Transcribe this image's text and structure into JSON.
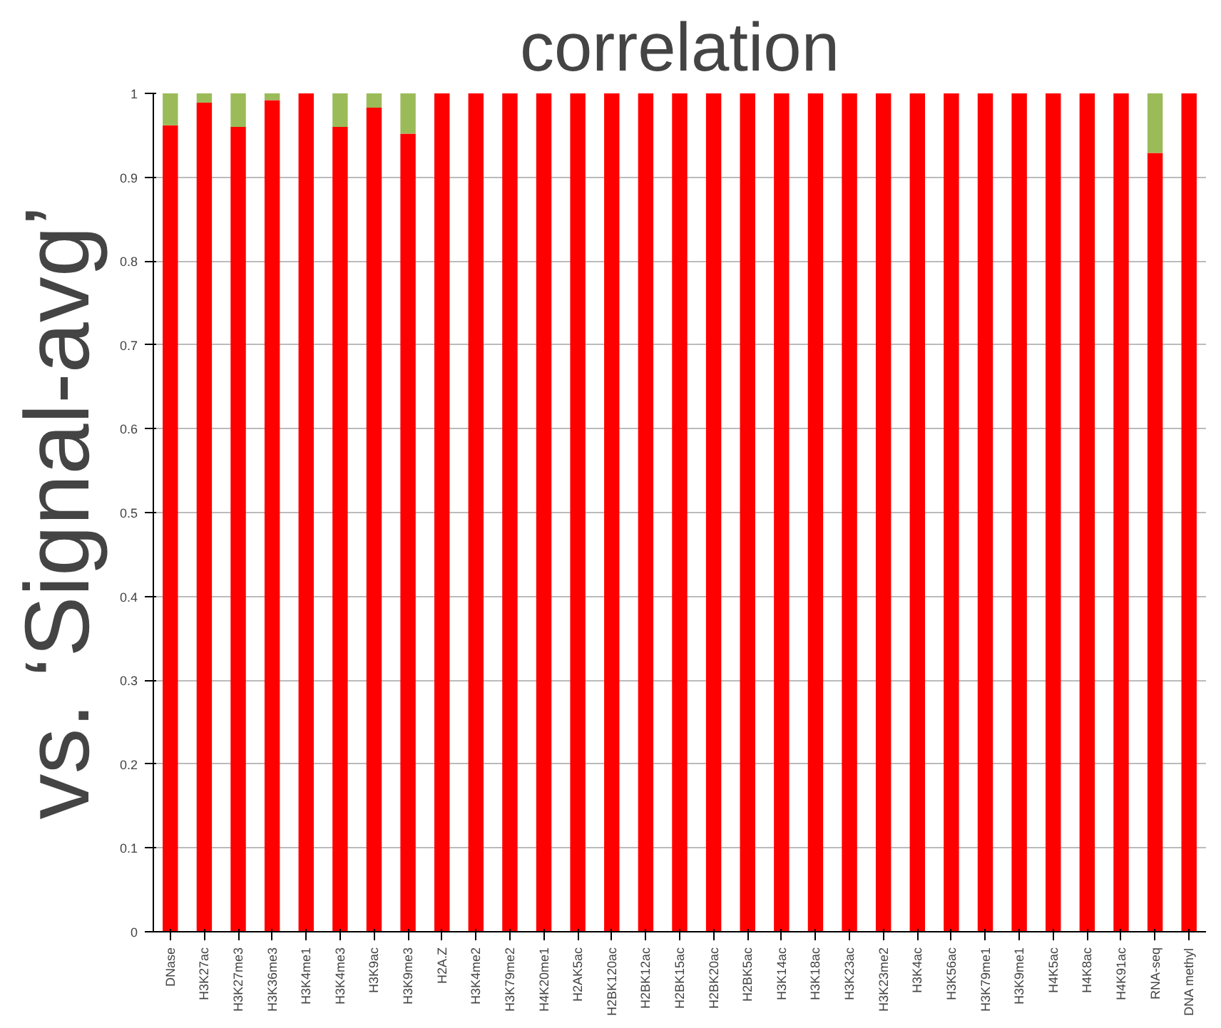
{
  "chart_data": {
    "type": "bar",
    "stacked": true,
    "title": "correlation",
    "ylabel": "vs. ‘Signal-avg’",
    "categories": [
      "DNase",
      "H3K27ac",
      "H3K27me3",
      "H3K36me3",
      "H3K4me1",
      "H3K4me3",
      "H3K9ac",
      "H3K9me3",
      "H2A.Z",
      "H3K4me2",
      "H3K79me2",
      "H4K20me1",
      "H2AK5ac",
      "H2BK120ac",
      "H2BK12ac",
      "H2BK15ac",
      "H2BK20ac",
      "H2BK5ac",
      "H3K14ac",
      "H3K18ac",
      "H3K23ac",
      "H3K23me2",
      "H3K4ac",
      "H3K56ac",
      "H3K79me1",
      "H3K9me1",
      "H4K5ac",
      "H4K8ac",
      "H4K91ac",
      "RNA-seq",
      "DNA methyl"
    ],
    "series": [
      {
        "color": "#ff0000",
        "values": [
          0.962,
          0.989,
          0.96,
          0.992,
          1,
          0.96,
          0.983,
          0.952,
          1,
          1,
          1,
          1,
          1,
          1,
          1,
          1,
          1,
          1,
          1,
          1,
          1,
          1,
          1,
          1,
          1,
          1,
          1,
          1,
          1,
          0.929,
          1
        ]
      },
      {
        "color": "#9bbb59",
        "values": [
          0.038,
          0.011,
          0.04,
          0.008,
          0,
          0.04,
          0.017,
          0.048,
          0,
          0,
          0,
          0,
          0,
          0,
          0,
          0,
          0,
          0,
          0,
          0,
          0,
          0,
          0,
          0,
          0,
          0,
          0,
          0,
          0,
          0.071,
          0
        ]
      }
    ],
    "ylim": [
      0,
      1
    ],
    "yticks": [
      0,
      0.1,
      0.2,
      0.3,
      0.4,
      0.5,
      0.6,
      0.7,
      0.8,
      0.9,
      1
    ],
    "grid": "y"
  }
}
